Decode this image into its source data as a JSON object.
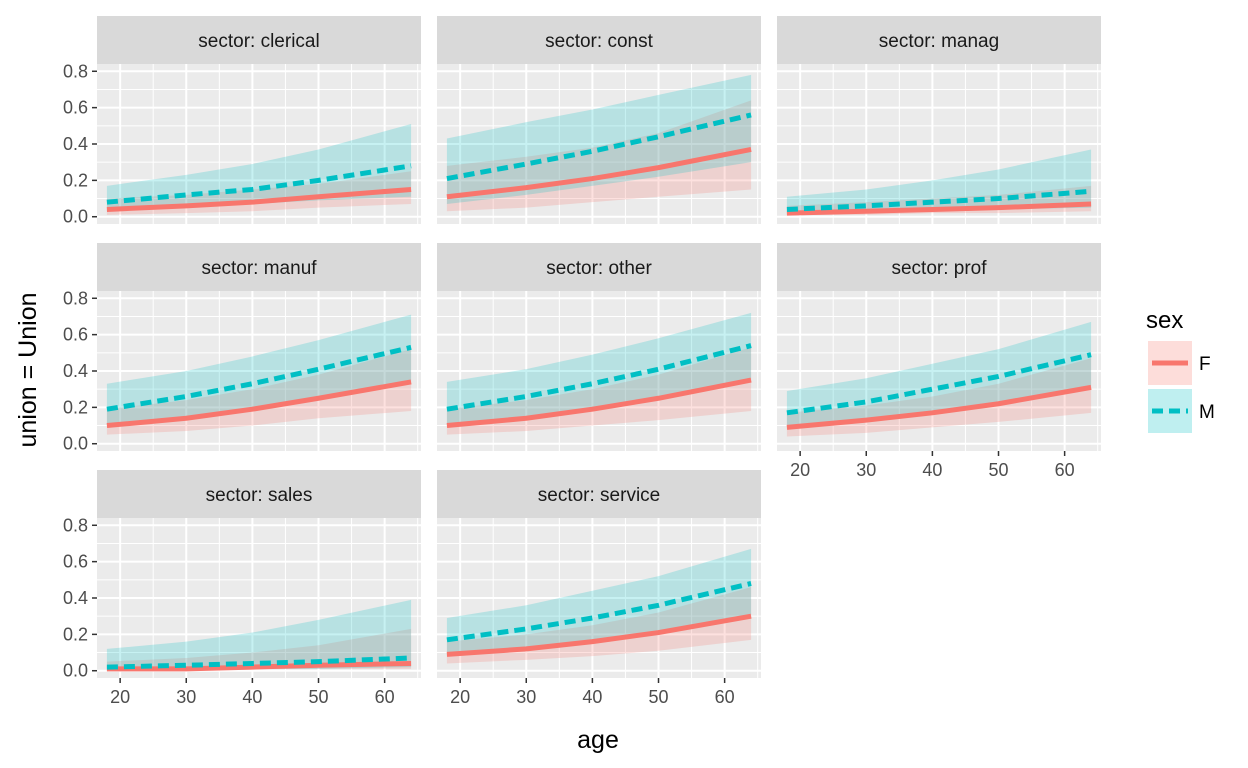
{
  "chart_data": {
    "type": "line",
    "facet_variable": "sector",
    "xlabel": "age",
    "ylabel": "union = Union",
    "xlim": [
      16.5,
      65.5
    ],
    "ylim": [
      -0.04,
      0.84
    ],
    "x_ticks": [
      20,
      30,
      40,
      50,
      60
    ],
    "y_ticks": [
      0.0,
      0.2,
      0.4,
      0.6,
      0.8
    ],
    "y_tick_labels": [
      "0.0",
      "0.2",
      "0.4",
      "0.6",
      "0.8"
    ],
    "legend": {
      "title": "sex",
      "position": "right",
      "entries": [
        {
          "label": "F",
          "color": "#F8766D",
          "fill": "#F8766D",
          "linetype": "solid"
        },
        {
          "label": "M",
          "color": "#00BFC4",
          "fill": "#00BFC4",
          "linetype": "dashed"
        }
      ]
    },
    "x": [
      18,
      30,
      40,
      50,
      64
    ],
    "panels": [
      {
        "strip": "sector: clerical",
        "series": [
          {
            "name": "F",
            "fit": [
              0.04,
              0.06,
              0.08,
              0.11,
              0.15
            ],
            "lower": [
              0.01,
              0.02,
              0.03,
              0.05,
              0.07
            ],
            "upper": [
              0.1,
              0.12,
              0.15,
              0.18,
              0.25
            ]
          },
          {
            "name": "M",
            "fit": [
              0.08,
              0.12,
              0.15,
              0.2,
              0.28
            ],
            "lower": [
              0.03,
              0.05,
              0.07,
              0.09,
              0.11
            ],
            "upper": [
              0.17,
              0.23,
              0.29,
              0.37,
              0.51
            ]
          }
        ]
      },
      {
        "strip": "sector: const",
        "series": [
          {
            "name": "F",
            "fit": [
              0.11,
              0.16,
              0.21,
              0.27,
              0.37
            ],
            "lower": [
              0.03,
              0.05,
              0.08,
              0.11,
              0.15
            ],
            "upper": [
              0.28,
              0.33,
              0.38,
              0.46,
              0.64
            ]
          },
          {
            "name": "M",
            "fit": [
              0.21,
              0.29,
              0.36,
              0.44,
              0.56
            ],
            "lower": [
              0.07,
              0.12,
              0.17,
              0.22,
              0.3
            ],
            "upper": [
              0.43,
              0.52,
              0.59,
              0.67,
              0.78
            ]
          }
        ]
      },
      {
        "strip": "sector: manag",
        "series": [
          {
            "name": "F",
            "fit": [
              0.02,
              0.03,
              0.04,
              0.05,
              0.07
            ],
            "lower": [
              0.01,
              0.01,
              0.02,
              0.02,
              0.03
            ],
            "upper": [
              0.06,
              0.08,
              0.1,
              0.12,
              0.17
            ]
          },
          {
            "name": "M",
            "fit": [
              0.04,
              0.06,
              0.08,
              0.1,
              0.14
            ],
            "lower": [
              0.01,
              0.02,
              0.03,
              0.04,
              0.05
            ],
            "upper": [
              0.11,
              0.15,
              0.2,
              0.26,
              0.37
            ]
          }
        ]
      },
      {
        "strip": "sector: manuf",
        "series": [
          {
            "name": "F",
            "fit": [
              0.1,
              0.14,
              0.19,
              0.25,
              0.34
            ],
            "lower": [
              0.05,
              0.07,
              0.1,
              0.14,
              0.18
            ],
            "upper": [
              0.19,
              0.24,
              0.3,
              0.38,
              0.52
            ]
          },
          {
            "name": "M",
            "fit": [
              0.19,
              0.26,
              0.33,
              0.41,
              0.53
            ],
            "lower": [
              0.09,
              0.14,
              0.19,
              0.25,
              0.34
            ],
            "upper": [
              0.33,
              0.4,
              0.48,
              0.57,
              0.71
            ]
          }
        ]
      },
      {
        "strip": "sector: other",
        "series": [
          {
            "name": "F",
            "fit": [
              0.1,
              0.14,
              0.19,
              0.25,
              0.35
            ],
            "lower": [
              0.05,
              0.07,
              0.1,
              0.13,
              0.18
            ],
            "upper": [
              0.19,
              0.24,
              0.3,
              0.38,
              0.53
            ]
          },
          {
            "name": "M",
            "fit": [
              0.19,
              0.26,
              0.33,
              0.41,
              0.54
            ],
            "lower": [
              0.09,
              0.14,
              0.19,
              0.25,
              0.34
            ],
            "upper": [
              0.34,
              0.41,
              0.49,
              0.58,
              0.72
            ]
          }
        ]
      },
      {
        "strip": "sector: prof",
        "series": [
          {
            "name": "F",
            "fit": [
              0.09,
              0.13,
              0.17,
              0.22,
              0.31
            ],
            "lower": [
              0.04,
              0.06,
              0.09,
              0.12,
              0.17
            ],
            "upper": [
              0.17,
              0.21,
              0.26,
              0.33,
              0.47
            ]
          },
          {
            "name": "M",
            "fit": [
              0.17,
              0.23,
              0.3,
              0.37,
              0.49
            ],
            "lower": [
              0.08,
              0.12,
              0.17,
              0.22,
              0.3
            ],
            "upper": [
              0.29,
              0.36,
              0.44,
              0.52,
              0.67
            ]
          }
        ]
      },
      {
        "strip": "sector: sales",
        "series": [
          {
            "name": "F",
            "fit": [
              0.01,
              0.01,
              0.02,
              0.03,
              0.04
            ],
            "lower": [
              0.0,
              0.0,
              0.01,
              0.01,
              0.01
            ],
            "upper": [
              0.05,
              0.07,
              0.1,
              0.14,
              0.23
            ]
          },
          {
            "name": "M",
            "fit": [
              0.02,
              0.03,
              0.04,
              0.05,
              0.07
            ],
            "lower": [
              0.0,
              0.01,
              0.01,
              0.01,
              0.02
            ],
            "upper": [
              0.12,
              0.16,
              0.21,
              0.28,
              0.39
            ]
          }
        ]
      },
      {
        "strip": "sector: service",
        "series": [
          {
            "name": "F",
            "fit": [
              0.09,
              0.12,
              0.16,
              0.21,
              0.3
            ],
            "lower": [
              0.04,
              0.06,
              0.08,
              0.11,
              0.17
            ],
            "upper": [
              0.16,
              0.2,
              0.25,
              0.32,
              0.46
            ]
          },
          {
            "name": "M",
            "fit": [
              0.17,
              0.23,
              0.29,
              0.36,
              0.48
            ],
            "lower": [
              0.08,
              0.12,
              0.16,
              0.21,
              0.29
            ],
            "upper": [
              0.29,
              0.36,
              0.44,
              0.52,
              0.67
            ]
          }
        ]
      }
    ]
  }
}
